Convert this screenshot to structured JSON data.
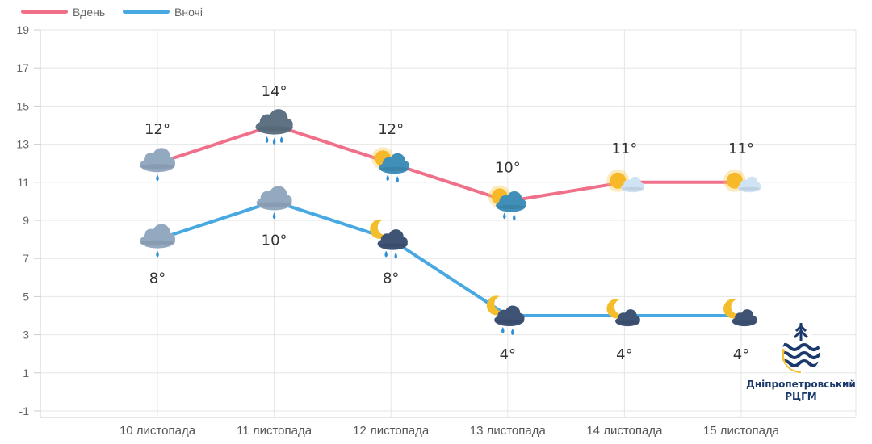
{
  "chart_data": {
    "type": "line",
    "title": "",
    "xlabel": "",
    "ylabel": "",
    "categories": [
      "10 листопада",
      "11 листопада",
      "12 листопада",
      "13 листопада",
      "14 листопада",
      "15 листопада"
    ],
    "ylim": [
      -1,
      19
    ],
    "yticks": [
      -1,
      1,
      3,
      5,
      7,
      9,
      11,
      13,
      15,
      17,
      19
    ],
    "grid": true,
    "legend_position": "top-left",
    "series": [
      {
        "name": "Вдень",
        "color": "#f0708a",
        "values": [
          12,
          14,
          12,
          10,
          11,
          11
        ],
        "labels": [
          "12°",
          "14°",
          "12°",
          "10°",
          "11°",
          "11°"
        ],
        "icons": [
          "cloud-rain-icon",
          "cloud-heavy-rain-icon",
          "sun-cloud-rain-icon",
          "sun-cloud-rain-icon",
          "sun-cloud-icon",
          "sun-cloud-icon"
        ]
      },
      {
        "name": "Вночі",
        "color": "#48a8e2",
        "values": [
          8,
          10,
          8,
          4,
          4,
          4
        ],
        "labels": [
          "8°",
          "10°",
          "8°",
          "4°",
          "4°",
          "4°"
        ],
        "icons": [
          "cloud-rain-icon",
          "cloud-rain-icon",
          "moon-cloud-rain-icon",
          "moon-cloud-rain-icon",
          "moon-cloud-icon",
          "moon-cloud-icon"
        ]
      }
    ]
  },
  "brand": {
    "name_line1": "Дніпропетровський",
    "name_line2": "РЦГМ",
    "colors": {
      "navy": "#1b3a6b",
      "gold": "#f2c230"
    }
  }
}
